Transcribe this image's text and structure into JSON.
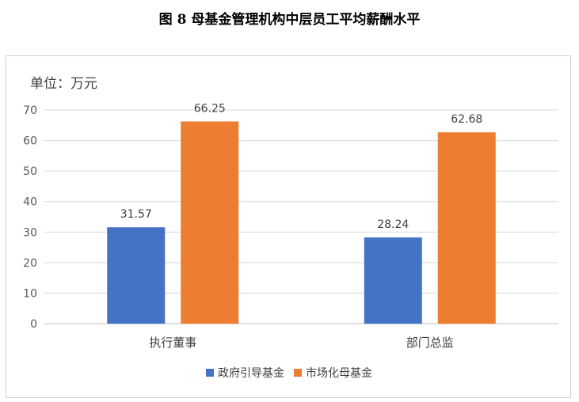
{
  "figure_title": "图 8  母基金管理机构中层员工平均薪酬水平",
  "chart_data": {
    "type": "bar",
    "title": "",
    "unit_label": "单位：万元",
    "categories": [
      "执行董事",
      "部门总监"
    ],
    "series": [
      {
        "name": "政府引导基金",
        "color": "#4472C4",
        "values": [
          31.57,
          28.24
        ]
      },
      {
        "name": "市场化母基金",
        "color": "#ED7D31",
        "values": [
          66.25,
          62.68
        ]
      }
    ],
    "ylim": [
      0,
      70
    ],
    "yticks": [
      0,
      10,
      20,
      30,
      40,
      50,
      60,
      70
    ],
    "grid": true,
    "legend": "bottom"
  }
}
